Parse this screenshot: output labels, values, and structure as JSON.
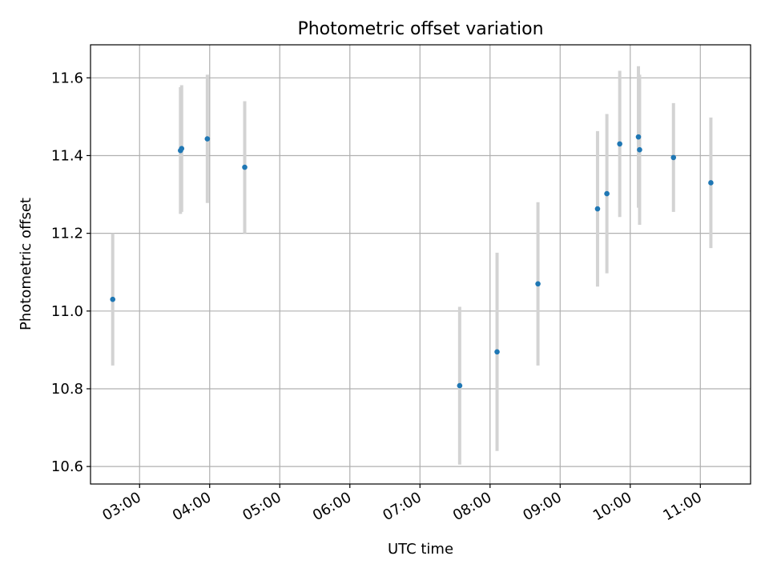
{
  "chart_data": {
    "type": "scatter",
    "title": "Photometric offset variation",
    "xlabel": "UTC time",
    "ylabel": "Photometric offset",
    "grid": true,
    "x_ticks": [
      "03:00",
      "04:00",
      "05:00",
      "06:00",
      "07:00",
      "08:00",
      "09:00",
      "10:00",
      "11:00"
    ],
    "y_ticks": [
      "10.6",
      "10.8",
      "11.0",
      "11.2",
      "11.4",
      "11.6"
    ],
    "xlim": [
      "02:18",
      "11:43"
    ],
    "ylim": [
      10.555,
      11.685
    ],
    "series": [
      {
        "point_color": "#1f77b4",
        "errorbar_color": "#d3d3d3",
        "points": [
          {
            "x": "02:37",
            "y": 11.03,
            "err": 0.17
          },
          {
            "x": "03:35",
            "y": 11.413,
            "err": 0.163
          },
          {
            "x": "03:36",
            "y": 11.418,
            "err": 0.163
          },
          {
            "x": "03:58",
            "y": 11.443,
            "err": 0.165
          },
          {
            "x": "04:30",
            "y": 11.37,
            "err": 0.17
          },
          {
            "x": "07:34",
            "y": 10.808,
            "err": 0.203
          },
          {
            "x": "08:06",
            "y": 10.895,
            "err": 0.255
          },
          {
            "x": "08:41",
            "y": 11.07,
            "err": 0.21
          },
          {
            "x": "09:32",
            "y": 11.263,
            "err": 0.2
          },
          {
            "x": "09:40",
            "y": 11.302,
            "err": 0.205
          },
          {
            "x": "09:51",
            "y": 11.43,
            "err": 0.188
          },
          {
            "x": "10:07",
            "y": 11.448,
            "err": 0.182
          },
          {
            "x": "10:08",
            "y": 11.415,
            "err": 0.193
          },
          {
            "x": "10:37",
            "y": 11.395,
            "err": 0.14
          },
          {
            "x": "11:09",
            "y": 11.33,
            "err": 0.168
          }
        ]
      }
    ]
  }
}
